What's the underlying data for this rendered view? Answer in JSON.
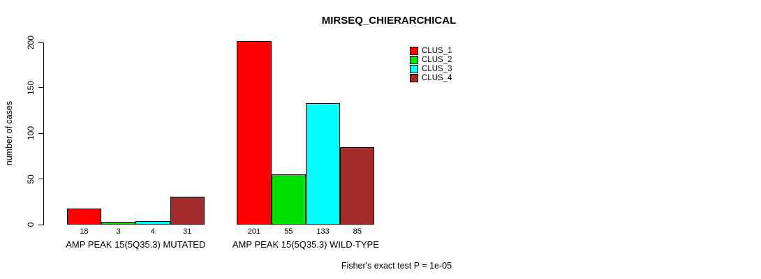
{
  "chart_data": {
    "type": "bar",
    "title": "MIRSEQ_CHIERARCHICAL",
    "ylabel": "number of cases",
    "ylim": [
      0,
      200
    ],
    "yticks": [
      0,
      50,
      100,
      150,
      200
    ],
    "grid": false,
    "legend_position": "top-right",
    "categories": [
      "AMP PEAK 15(5Q35.3) MUTATED",
      "AMP PEAK 15(5Q35.3) WILD-TYPE"
    ],
    "series": [
      {
        "name": "CLUS_1",
        "color": "#ff0000",
        "values": [
          18,
          201
        ]
      },
      {
        "name": "CLUS_2",
        "color": "#00e000",
        "values": [
          3,
          55
        ]
      },
      {
        "name": "CLUS_3",
        "color": "#00ffff",
        "values": [
          4,
          133
        ]
      },
      {
        "name": "CLUS_4",
        "color": "#a52a2a",
        "values": [
          31,
          85
        ]
      }
    ],
    "bar_value_labels": [
      [
        18,
        3,
        4,
        31
      ],
      [
        201,
        55,
        133,
        85
      ]
    ],
    "annotation": "Fisher's exact test P = 1e-05"
  }
}
